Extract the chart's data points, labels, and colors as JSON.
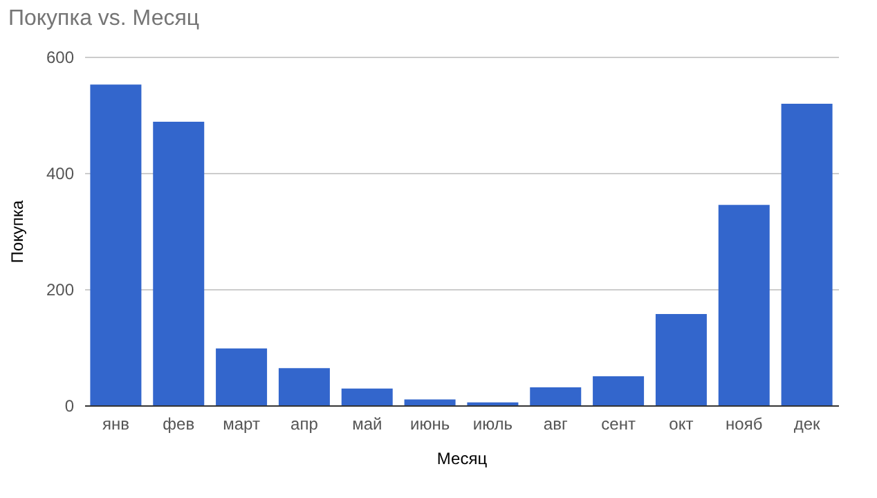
{
  "chart_data": {
    "type": "bar",
    "title": "Покупка vs. Месяц",
    "xlabel": "Месяц",
    "ylabel": "Покупка",
    "categories": [
      "янв",
      "фев",
      "март",
      "апр",
      "май",
      "июнь",
      "июль",
      "авг",
      "сент",
      "окт",
      "нояб",
      "дек"
    ],
    "values": [
      552,
      488,
      98,
      64,
      29,
      10,
      5,
      31,
      50,
      157,
      345,
      519
    ],
    "color": "#3366cc",
    "ylim": [
      0,
      600
    ],
    "yticks": [
      0,
      200,
      400,
      600
    ],
    "grid": "y"
  }
}
